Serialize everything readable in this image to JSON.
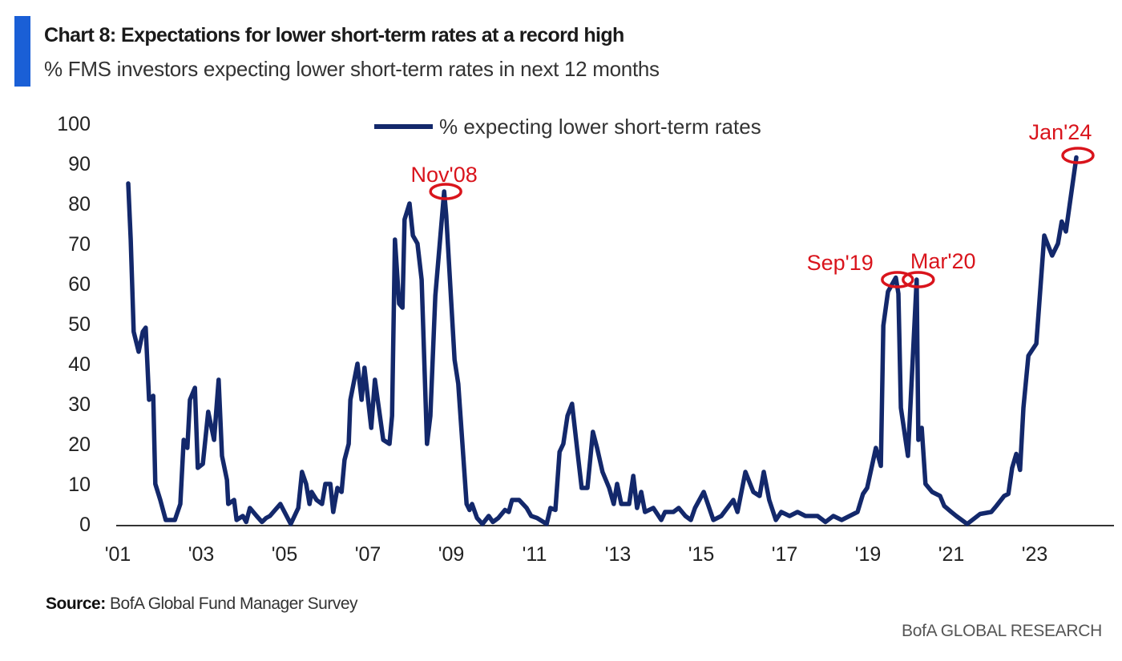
{
  "header": {
    "title": "Chart 8: Expectations for lower short-term rates at a record high",
    "subtitle": "% FMS investors expecting lower short-term rates in next 12 months"
  },
  "footer": {
    "source_label": "Source:",
    "source_text": " BofA Global Fund Manager Survey",
    "brand": "BofA GLOBAL RESEARCH"
  },
  "chart_data": {
    "type": "line",
    "title": "Chart 8: Expectations for lower short-term rates at a record high",
    "subtitle": "% FMS investors expecting lower short-term rates in next 12 months",
    "xlabel": "",
    "ylabel": "",
    "ylim": [
      0,
      100
    ],
    "xlim": [
      2001,
      2024
    ],
    "yticks": [
      0,
      10,
      20,
      30,
      40,
      50,
      60,
      70,
      80,
      90,
      100
    ],
    "xticks": [
      {
        "value": 2001,
        "label": "'01"
      },
      {
        "value": 2003,
        "label": "'03"
      },
      {
        "value": 2005,
        "label": "'05"
      },
      {
        "value": 2007,
        "label": "'07"
      },
      {
        "value": 2009,
        "label": "'09"
      },
      {
        "value": 2011,
        "label": "'11"
      },
      {
        "value": 2013,
        "label": "'13"
      },
      {
        "value": 2015,
        "label": "'15"
      },
      {
        "value": 2017,
        "label": "'17"
      },
      {
        "value": 2019,
        "label": "'19"
      },
      {
        "value": 2021,
        "label": "'21"
      },
      {
        "value": 2023,
        "label": "'23"
      }
    ],
    "grid": false,
    "legend": {
      "position": "top-center",
      "entries": [
        "% expecting lower short-term rates"
      ]
    },
    "colors": {
      "line": "#13286b",
      "annotation": "#d9141c",
      "accent": "#1a5fd6"
    },
    "series": [
      {
        "name": "% expecting lower short-term rates",
        "points": [
          [
            2001.25,
            85
          ],
          [
            2001.31,
            71
          ],
          [
            2001.38,
            48
          ],
          [
            2001.5,
            43
          ],
          [
            2001.6,
            48
          ],
          [
            2001.67,
            49
          ],
          [
            2001.75,
            31
          ],
          [
            2001.85,
            32
          ],
          [
            2001.9,
            10
          ],
          [
            2002.02,
            6
          ],
          [
            2002.15,
            1
          ],
          [
            2002.37,
            1
          ],
          [
            2002.5,
            5
          ],
          [
            2002.58,
            21
          ],
          [
            2002.67,
            19
          ],
          [
            2002.73,
            31
          ],
          [
            2002.85,
            34
          ],
          [
            2002.92,
            14
          ],
          [
            2003.04,
            15
          ],
          [
            2003.17,
            28
          ],
          [
            2003.31,
            21
          ],
          [
            2003.42,
            36
          ],
          [
            2003.5,
            17
          ],
          [
            2003.62,
            11
          ],
          [
            2003.65,
            5
          ],
          [
            2003.79,
            6
          ],
          [
            2003.85,
            1
          ],
          [
            2004.0,
            2
          ],
          [
            2004.08,
            0.5
          ],
          [
            2004.17,
            4
          ],
          [
            2004.33,
            2
          ],
          [
            2004.46,
            0.5
          ],
          [
            2004.56,
            1.5
          ],
          [
            2004.65,
            2
          ],
          [
            2004.9,
            5
          ],
          [
            2005.15,
            0
          ],
          [
            2005.33,
            4
          ],
          [
            2005.42,
            13
          ],
          [
            2005.52,
            10
          ],
          [
            2005.6,
            5
          ],
          [
            2005.65,
            8
          ],
          [
            2005.77,
            6
          ],
          [
            2005.9,
            5
          ],
          [
            2005.98,
            10
          ],
          [
            2006.1,
            10
          ],
          [
            2006.17,
            3
          ],
          [
            2006.27,
            9
          ],
          [
            2006.37,
            8
          ],
          [
            2006.44,
            16
          ],
          [
            2006.54,
            20
          ],
          [
            2006.58,
            31
          ],
          [
            2006.75,
            40
          ],
          [
            2006.85,
            31
          ],
          [
            2006.92,
            39
          ],
          [
            2007.08,
            24
          ],
          [
            2007.17,
            36
          ],
          [
            2007.37,
            21
          ],
          [
            2007.52,
            20
          ],
          [
            2007.58,
            27
          ],
          [
            2007.65,
            71
          ],
          [
            2007.75,
            55
          ],
          [
            2007.83,
            54
          ],
          [
            2007.88,
            76
          ],
          [
            2008.0,
            80
          ],
          [
            2008.08,
            72
          ],
          [
            2008.19,
            70
          ],
          [
            2008.29,
            61
          ],
          [
            2008.42,
            20
          ],
          [
            2008.5,
            27
          ],
          [
            2008.62,
            57
          ],
          [
            2008.83,
            83
          ],
          [
            2008.88,
            77
          ],
          [
            2009.08,
            41
          ],
          [
            2009.17,
            35
          ],
          [
            2009.37,
            5
          ],
          [
            2009.44,
            3.5
          ],
          [
            2009.5,
            5
          ],
          [
            2009.62,
            1.5
          ],
          [
            2009.75,
            0
          ],
          [
            2009.9,
            2
          ],
          [
            2010.0,
            0.5
          ],
          [
            2010.13,
            1.5
          ],
          [
            2010.29,
            3.5
          ],
          [
            2010.38,
            3
          ],
          [
            2010.46,
            6
          ],
          [
            2010.63,
            6
          ],
          [
            2010.81,
            4
          ],
          [
            2010.92,
            2
          ],
          [
            2011.06,
            1.5
          ],
          [
            2011.29,
            0
          ],
          [
            2011.38,
            4
          ],
          [
            2011.5,
            3.5
          ],
          [
            2011.6,
            18
          ],
          [
            2011.69,
            20
          ],
          [
            2011.79,
            27
          ],
          [
            2011.9,
            30
          ],
          [
            2012.02,
            19
          ],
          [
            2012.13,
            9
          ],
          [
            2012.27,
            9
          ],
          [
            2012.4,
            23
          ],
          [
            2012.5,
            19
          ],
          [
            2012.63,
            13
          ],
          [
            2012.79,
            9
          ],
          [
            2012.9,
            5
          ],
          [
            2012.98,
            10
          ],
          [
            2013.08,
            5
          ],
          [
            2013.27,
            5
          ],
          [
            2013.37,
            12
          ],
          [
            2013.46,
            4
          ],
          [
            2013.56,
            8
          ],
          [
            2013.65,
            3
          ],
          [
            2013.85,
            4
          ],
          [
            2014.04,
            1
          ],
          [
            2014.13,
            3
          ],
          [
            2014.33,
            3
          ],
          [
            2014.46,
            4
          ],
          [
            2014.62,
            2
          ],
          [
            2014.75,
            1
          ],
          [
            2014.85,
            4
          ],
          [
            2015.06,
            8
          ],
          [
            2015.29,
            1
          ],
          [
            2015.48,
            2
          ],
          [
            2015.77,
            6
          ],
          [
            2015.87,
            3
          ],
          [
            2016.06,
            13
          ],
          [
            2016.25,
            8
          ],
          [
            2016.4,
            7
          ],
          [
            2016.5,
            13
          ],
          [
            2016.63,
            6
          ],
          [
            2016.79,
            1
          ],
          [
            2016.92,
            3
          ],
          [
            2017.12,
            2
          ],
          [
            2017.31,
            3
          ],
          [
            2017.5,
            2
          ],
          [
            2017.79,
            2
          ],
          [
            2017.98,
            0.5
          ],
          [
            2018.17,
            2
          ],
          [
            2018.37,
            1
          ],
          [
            2018.56,
            2
          ],
          [
            2018.75,
            3
          ],
          [
            2018.88,
            7.5
          ],
          [
            2018.98,
            9
          ],
          [
            2019.19,
            19
          ],
          [
            2019.31,
            14.5
          ],
          [
            2019.37,
            49.5
          ],
          [
            2019.48,
            58
          ],
          [
            2019.67,
            61.5
          ],
          [
            2019.73,
            57.5
          ],
          [
            2019.79,
            29
          ],
          [
            2019.96,
            17
          ],
          [
            2020.17,
            61
          ],
          [
            2020.21,
            21
          ],
          [
            2020.29,
            24
          ],
          [
            2020.38,
            10
          ],
          [
            2020.54,
            8
          ],
          [
            2020.73,
            7
          ],
          [
            2020.83,
            4.5
          ],
          [
            2021.0,
            3
          ],
          [
            2021.12,
            2
          ],
          [
            2021.38,
            0
          ],
          [
            2021.69,
            2.5
          ],
          [
            2021.96,
            3
          ],
          [
            2022.08,
            4.5
          ],
          [
            2022.27,
            7
          ],
          [
            2022.37,
            7.5
          ],
          [
            2022.46,
            14
          ],
          [
            2022.56,
            17.5
          ],
          [
            2022.65,
            13.5
          ],
          [
            2022.73,
            29
          ],
          [
            2022.85,
            42
          ],
          [
            2023.04,
            45
          ],
          [
            2023.23,
            72
          ],
          [
            2023.42,
            67
          ],
          [
            2023.56,
            70
          ],
          [
            2023.65,
            75.5
          ],
          [
            2023.75,
            73
          ],
          [
            2024.0,
            91.5
          ]
        ]
      }
    ],
    "annotations": [
      {
        "label": "Nov'08",
        "x": 2008.83,
        "y": 83
      },
      {
        "label": "Sep'19",
        "x": 2019.67,
        "y": 61
      },
      {
        "label": "Mar'20",
        "x": 2020.17,
        "y": 61
      },
      {
        "label": "Jan'24",
        "x": 2024.0,
        "y": 92
      }
    ]
  }
}
